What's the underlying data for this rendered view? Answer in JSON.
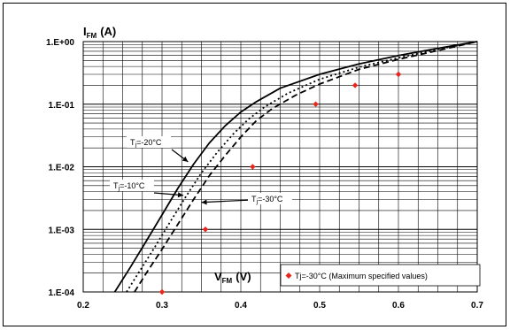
{
  "chart_data": {
    "type": "line",
    "xlabel": {
      "main": "V",
      "sub": "FM",
      "unit": "(V)"
    },
    "ylabel": {
      "main": "I",
      "sub": "FM",
      "unit": "(A)"
    },
    "xlim": [
      0.2,
      0.7
    ],
    "ylim": [
      0.0001,
      1
    ],
    "yscale": "log",
    "grid": true,
    "x_ticks": [
      "0.2",
      "0.3",
      "0.4",
      "0.5",
      "0.6",
      "0.7"
    ],
    "y_ticks": [
      "1.E-04",
      "1.E-03",
      "1.E-02",
      "1.E-01",
      "1.E+00"
    ],
    "legend_position": "bottom-right",
    "series": [
      {
        "key": "tj_m20",
        "style": "solid",
        "x": [
          0.24,
          0.26,
          0.28,
          0.3,
          0.32,
          0.34,
          0.36,
          0.38,
          0.4,
          0.42,
          0.45,
          0.5,
          0.55,
          0.6,
          0.65,
          0.7
        ],
        "y": [
          0.0001,
          0.00025,
          0.00065,
          0.0017,
          0.0045,
          0.011,
          0.024,
          0.045,
          0.075,
          0.11,
          0.18,
          0.3,
          0.44,
          0.6,
          0.78,
          1.0
        ]
      },
      {
        "key": "tj_m10",
        "style": "dotted",
        "x": [
          0.255,
          0.27,
          0.29,
          0.31,
          0.33,
          0.35,
          0.37,
          0.39,
          0.41,
          0.43,
          0.46,
          0.5,
          0.55,
          0.6,
          0.65,
          0.7
        ],
        "y": [
          0.0001,
          0.0002,
          0.0005,
          0.0013,
          0.0033,
          0.008,
          0.017,
          0.033,
          0.058,
          0.09,
          0.15,
          0.25,
          0.39,
          0.55,
          0.75,
          1.0
        ]
      },
      {
        "key": "tj_m30",
        "style": "dashed",
        "x": [
          0.265,
          0.28,
          0.3,
          0.32,
          0.34,
          0.36,
          0.38,
          0.4,
          0.42,
          0.44,
          0.47,
          0.5,
          0.55,
          0.6,
          0.65,
          0.7
        ],
        "y": [
          0.0001,
          0.0002,
          0.00048,
          0.0012,
          0.003,
          0.0072,
          0.015,
          0.03,
          0.055,
          0.085,
          0.14,
          0.21,
          0.36,
          0.52,
          0.72,
          1.0
        ]
      }
    ],
    "scatter": {
      "legend_label": "Tj=-30°C (Maximum specified values)",
      "points": [
        {
          "x": 0.3,
          "y": 0.0001
        },
        {
          "x": 0.355,
          "y": 0.001
        },
        {
          "x": 0.415,
          "y": 0.01
        },
        {
          "x": 0.495,
          "y": 0.1
        },
        {
          "x": 0.545,
          "y": 0.2
        },
        {
          "x": 0.6,
          "y": 0.3
        }
      ],
      "color": "#e8261e"
    },
    "annotations": [
      {
        "key": "tj_m20",
        "pre": "T",
        "sub": "j",
        "post": "=-20°C",
        "tx": 0.333,
        "ty": 0.012
      },
      {
        "key": "tj_m10",
        "pre": "T",
        "sub": "j",
        "post": "=-10°C",
        "tx": 0.327,
        "ty": 0.0035
      },
      {
        "key": "tj_m30",
        "pre": "T",
        "sub": "j",
        "post": "=-30°C",
        "tx": 0.35,
        "ty": 0.0027
      }
    ],
    "colors": {
      "line": "#000000",
      "grid": "#000000",
      "background": "#ffffff"
    }
  }
}
